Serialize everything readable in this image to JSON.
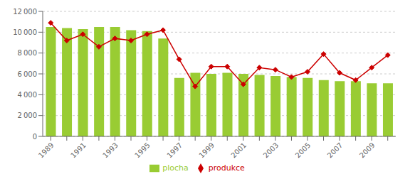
{
  "chart_data": {
    "type": "bar",
    "categories": [
      "1989",
      null,
      "1991",
      null,
      "1993",
      null,
      "1995",
      null,
      "1997",
      null,
      "1999",
      null,
      "2001",
      null,
      "2003",
      null,
      "2005",
      null,
      "2007",
      null,
      "2009",
      null
    ],
    "series": [
      {
        "name": "plocha",
        "type": "bar",
        "color": "#99cc33",
        "values": [
          10500,
          10400,
          10300,
          10500,
          10500,
          10200,
          10100,
          9400,
          5600,
          6100,
          6000,
          6100,
          6000,
          5900,
          5800,
          5700,
          5600,
          5400,
          5300,
          5300,
          5100,
          5100
        ]
      },
      {
        "name": "produkce",
        "type": "line",
        "color": "#cc0000",
        "marker": "diamond",
        "values": [
          10900,
          9200,
          9800,
          8600,
          9400,
          9200,
          9800,
          10200,
          7400,
          4800,
          6700,
          6700,
          5000,
          6600,
          6400,
          5700,
          6200,
          7900,
          6100,
          5400,
          6600,
          7800
        ]
      }
    ],
    "ylim": [
      0,
      12000
    ],
    "yticks": [
      0,
      {
        "value": 2000,
        "label": "2 000"
      },
      {
        "value": 4000,
        "label": "4 000"
      },
      {
        "value": 6000,
        "label": "6 000"
      },
      {
        "value": 8000,
        "label": "8 000"
      },
      {
        "value": 10000,
        "label": "10 000"
      },
      {
        "value": 12000,
        "label": "12 000"
      }
    ],
    "grid": true,
    "legend": "bottom"
  }
}
